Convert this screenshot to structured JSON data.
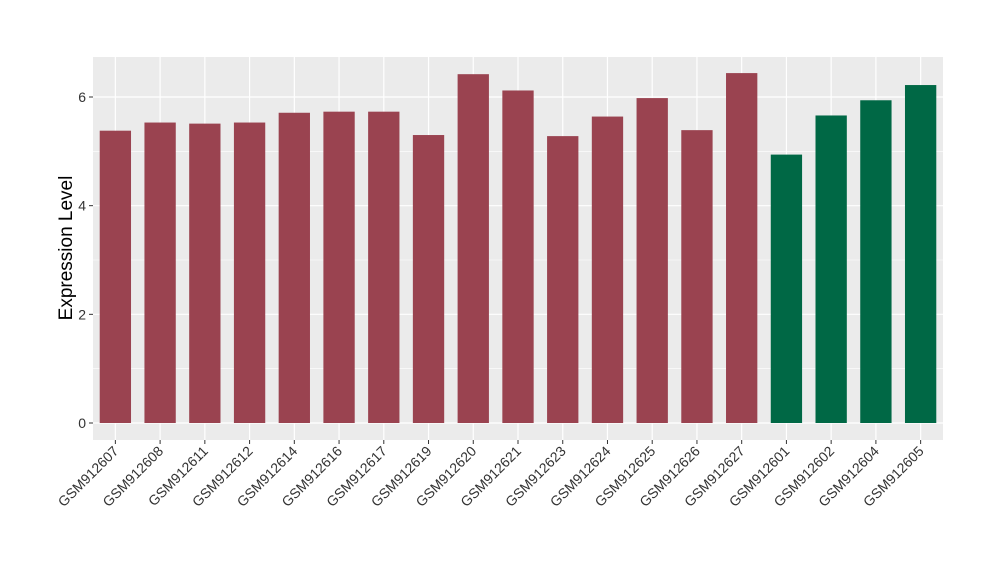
{
  "chart_data": {
    "type": "bar",
    "title": "",
    "xlabel": "",
    "ylabel": "Expression Level",
    "ylim": [
      -0.3,
      6.75
    ],
    "y_ticks": [
      0,
      2,
      4,
      6
    ],
    "y_tick_labels": [
      "0",
      "2",
      "4",
      "6"
    ],
    "grid": true,
    "legend": "none",
    "background": "#EBEBEB",
    "categories": [
      "GSM912607",
      "GSM912608",
      "GSM912611",
      "GSM912612",
      "GSM912614",
      "GSM912616",
      "GSM912617",
      "GSM912619",
      "GSM912620",
      "GSM912621",
      "GSM912623",
      "GSM912624",
      "GSM912625",
      "GSM912626",
      "GSM912627",
      "GSM912601",
      "GSM912602",
      "GSM912604",
      "GSM912605"
    ],
    "values": [
      5.38,
      5.53,
      5.51,
      5.53,
      5.71,
      5.73,
      5.73,
      5.3,
      6.42,
      6.12,
      5.28,
      5.64,
      5.98,
      5.39,
      6.44,
      4.94,
      5.66,
      5.94,
      6.22
    ],
    "groups": [
      "a",
      "a",
      "a",
      "a",
      "a",
      "a",
      "a",
      "a",
      "a",
      "a",
      "a",
      "a",
      "a",
      "a",
      "a",
      "b",
      "b",
      "b",
      "b"
    ],
    "group_colors": {
      "a": "#9A4350",
      "b": "#006845"
    }
  }
}
